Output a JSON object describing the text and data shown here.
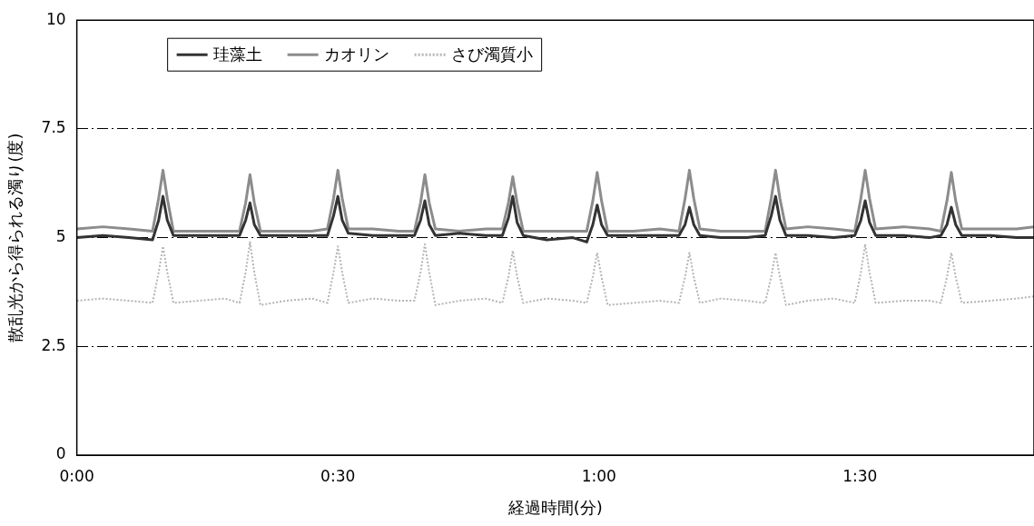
{
  "chart_data": {
    "type": "line",
    "xlabel": "経過時間(分)",
    "ylabel": "散乱光から得られる濁り(度)",
    "x": [
      0,
      3,
      6,
      8.7,
      9.4,
      9.9,
      10.4,
      11.1,
      14,
      17,
      18.7,
      19.4,
      19.9,
      20.4,
      21.1,
      24,
      27,
      28.8,
      29.5,
      30,
      30.5,
      31.2,
      34,
      37,
      38.8,
      39.5,
      40,
      40.5,
      41.2,
      44,
      47,
      48.9,
      49.6,
      50.1,
      50.6,
      51.3,
      54,
      57,
      58.6,
      59.3,
      59.8,
      60.3,
      61,
      64,
      67,
      69.2,
      69.9,
      70.4,
      70.9,
      71.6,
      74,
      77,
      79.1,
      79.8,
      80.3,
      80.8,
      81.5,
      84,
      87,
      89.4,
      90.1,
      90.6,
      91.1,
      91.8,
      95,
      98,
      99.3,
      100,
      100.5,
      101,
      101.7,
      105,
      108,
      110
    ],
    "series": [
      {
        "name": "珪藻土",
        "color": "#333333",
        "line_style": "solid",
        "values": [
          5.0,
          5.05,
          5.0,
          4.95,
          5.4,
          5.95,
          5.4,
          5.05,
          5.05,
          5.05,
          5.05,
          5.4,
          5.8,
          5.3,
          5.05,
          5.05,
          5.05,
          5.05,
          5.5,
          5.95,
          5.4,
          5.1,
          5.05,
          5.05,
          5.05,
          5.4,
          5.85,
          5.3,
          5.05,
          5.1,
          5.05,
          5.05,
          5.45,
          5.95,
          5.35,
          5.05,
          4.95,
          5.0,
          4.9,
          5.3,
          5.75,
          5.3,
          5.05,
          5.05,
          5.05,
          5.05,
          5.3,
          5.7,
          5.3,
          5.05,
          5.0,
          5.0,
          5.05,
          5.5,
          5.95,
          5.4,
          5.05,
          5.05,
          5.0,
          5.05,
          5.4,
          5.85,
          5.35,
          5.05,
          5.05,
          5.0,
          5.05,
          5.3,
          5.7,
          5.3,
          5.05,
          5.05,
          5.0,
          5.0
        ]
      },
      {
        "name": "カオリン",
        "color": "#8c8c8c",
        "line_style": "solid",
        "values": [
          5.2,
          5.25,
          5.2,
          5.15,
          5.9,
          6.55,
          5.9,
          5.15,
          5.15,
          5.15,
          5.15,
          5.8,
          6.45,
          5.8,
          5.15,
          5.15,
          5.15,
          5.2,
          5.9,
          6.55,
          5.9,
          5.2,
          5.2,
          5.15,
          5.15,
          5.8,
          6.45,
          5.8,
          5.2,
          5.15,
          5.2,
          5.2,
          5.8,
          6.4,
          5.8,
          5.15,
          5.15,
          5.15,
          5.15,
          5.85,
          6.5,
          5.85,
          5.15,
          5.15,
          5.2,
          5.15,
          5.9,
          6.55,
          5.9,
          5.2,
          5.15,
          5.15,
          5.15,
          5.9,
          6.55,
          5.9,
          5.2,
          5.25,
          5.2,
          5.15,
          5.9,
          6.55,
          5.9,
          5.2,
          5.25,
          5.2,
          5.15,
          5.85,
          6.5,
          5.85,
          5.2,
          5.2,
          5.2,
          5.25
        ]
      },
      {
        "name": "さび濁質小",
        "color": "#b4b4b4",
        "line_style": "dotted",
        "values": [
          3.55,
          3.6,
          3.55,
          3.5,
          4.2,
          4.8,
          4.2,
          3.5,
          3.55,
          3.6,
          3.5,
          4.2,
          4.9,
          4.2,
          3.45,
          3.55,
          3.6,
          3.5,
          4.2,
          4.8,
          4.2,
          3.5,
          3.6,
          3.55,
          3.55,
          4.2,
          4.85,
          4.2,
          3.45,
          3.55,
          3.6,
          3.5,
          4.1,
          4.7,
          4.1,
          3.5,
          3.6,
          3.55,
          3.5,
          4.1,
          4.65,
          4.1,
          3.45,
          3.5,
          3.55,
          3.5,
          4.1,
          4.65,
          4.1,
          3.5,
          3.6,
          3.55,
          3.5,
          4.1,
          4.65,
          4.1,
          3.45,
          3.55,
          3.6,
          3.5,
          4.2,
          4.85,
          4.2,
          3.5,
          3.55,
          3.55,
          3.5,
          4.1,
          4.65,
          4.1,
          3.5,
          3.55,
          3.6,
          3.65
        ]
      }
    ],
    "xlim": [
      0,
      110
    ],
    "xticks": [
      {
        "value": 0,
        "label": "0:00"
      },
      {
        "value": 30,
        "label": "0:30"
      },
      {
        "value": 60,
        "label": "1:00"
      },
      {
        "value": 90,
        "label": "1:30"
      }
    ],
    "ylim": [
      0,
      10
    ],
    "yticks": [
      0,
      2.5,
      5,
      7.5,
      10
    ],
    "grid": "y",
    "legend": "top left",
    "marker": "none"
  }
}
